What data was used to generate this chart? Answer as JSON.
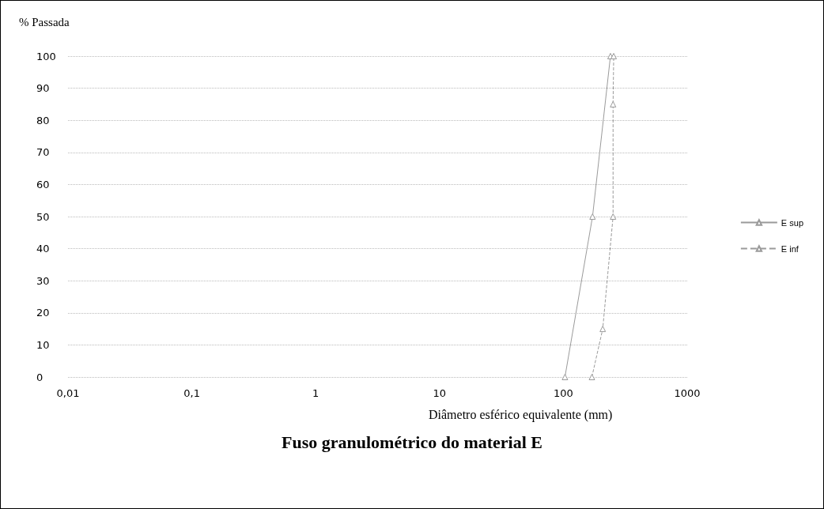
{
  "chart_data": {
    "type": "line",
    "title": "Fuso granulométrico do material E",
    "xlabel": "Diâmetro esférico equivalente (mm)",
    "ylabel": "% Passada",
    "log": "x",
    "xlim": [
      0.01,
      1000
    ],
    "xticks": [
      {
        "value": 0.01,
        "label": "0,01"
      },
      {
        "value": 0.1,
        "label": "0,1"
      },
      1,
      10,
      100,
      1000
    ],
    "ylim": [
      0,
      100
    ],
    "yticks": [
      0,
      10,
      20,
      30,
      40,
      50,
      60,
      70,
      80,
      90,
      100
    ],
    "grid": "y",
    "legend": "right",
    "marker": "triangle",
    "series": [
      {
        "name": "E sup",
        "color": "#9a9a9a",
        "line_style": "solid",
        "x": [
          103,
          172,
          240
        ],
        "values": [
          0,
          50,
          100
        ]
      },
      {
        "name": "E inf",
        "color": "#9a9a9a",
        "line_style": "dashed",
        "x": [
          170,
          208,
          252,
          252,
          255
        ],
        "values": [
          0,
          15,
          50,
          85,
          100
        ]
      }
    ]
  }
}
